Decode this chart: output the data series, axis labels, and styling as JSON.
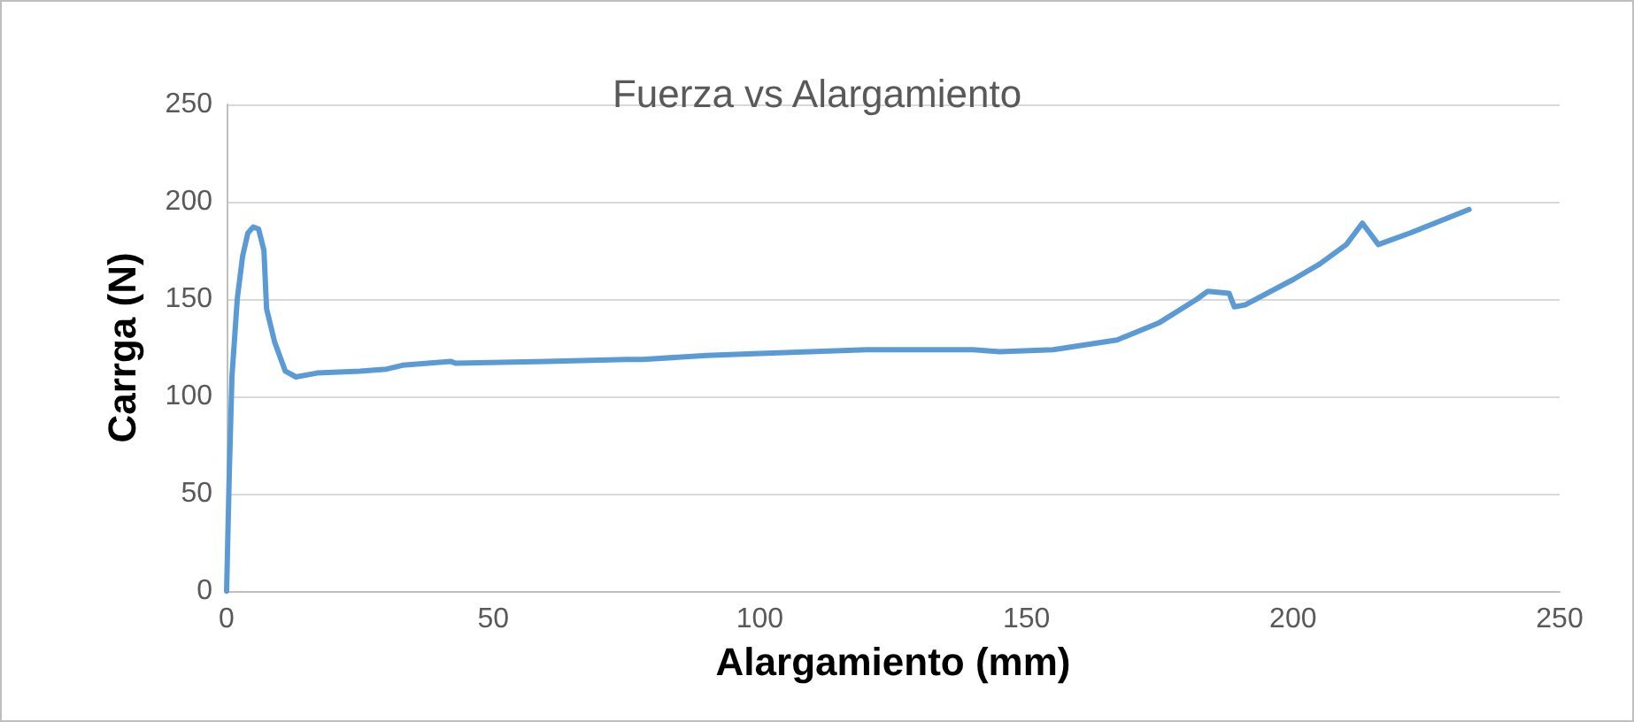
{
  "chart_data": {
    "type": "line",
    "title": "Fuerza vs Alargamiento",
    "xlabel": "Alargamiento (mm)",
    "ylabel": "Carrga (N)",
    "x": [
      0,
      0.5,
      1,
      2,
      3,
      4,
      5,
      6,
      7,
      7.5,
      9,
      11,
      13,
      17,
      25,
      30,
      33,
      42,
      43,
      60,
      75,
      78,
      90,
      100,
      120,
      130,
      140,
      145,
      155,
      167,
      175,
      182,
      184,
      188,
      189,
      191,
      200,
      205,
      210,
      213,
      216,
      222,
      233
    ],
    "series": [
      {
        "color": "#5b9bd5",
        "values": [
          0,
          60,
          110,
          150,
          172,
          184,
          187,
          186,
          175,
          145,
          128,
          113,
          110,
          112,
          113,
          114,
          116,
          118,
          117,
          118,
          119,
          119,
          121,
          122,
          124,
          124,
          124,
          123,
          124,
          129,
          138,
          150,
          154,
          153,
          146,
          147,
          160,
          168,
          178,
          189,
          178,
          184,
          196
        ]
      }
    ],
    "xlim": [
      0,
      250
    ],
    "xticks": [
      0,
      50,
      100,
      150,
      200,
      250
    ],
    "ylim": [
      0,
      250
    ],
    "yticks": [
      0,
      50,
      100,
      150,
      200,
      250
    ],
    "grid": "y",
    "marker": "none",
    "line_style": "solid"
  }
}
